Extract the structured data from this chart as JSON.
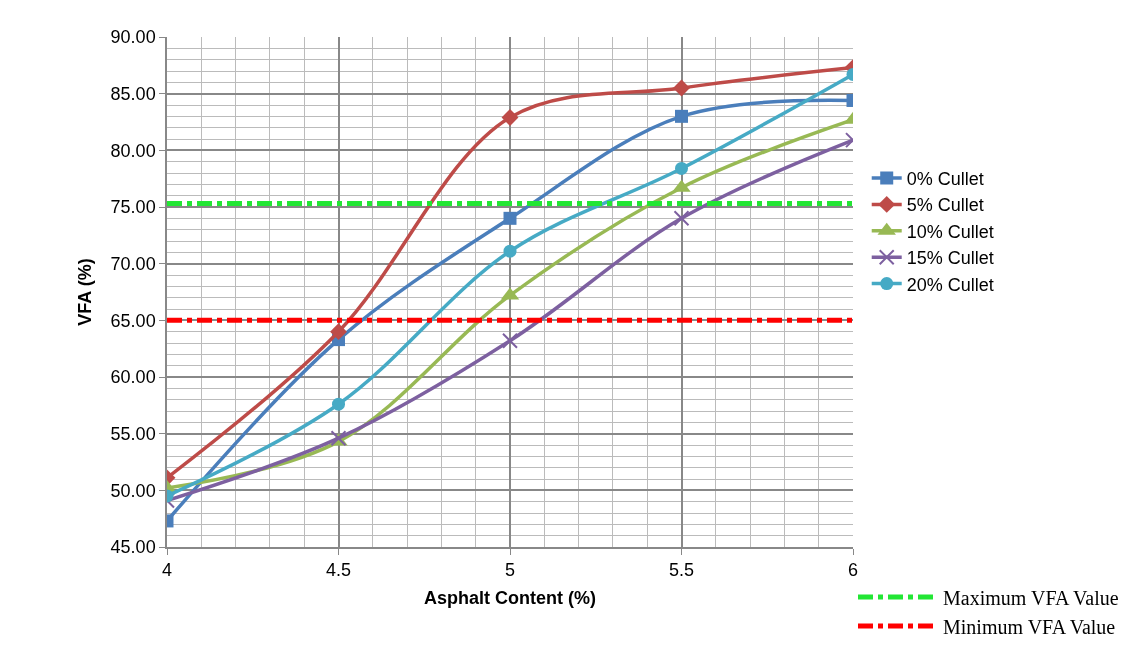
{
  "chart_data": {
    "type": "line",
    "xlabel": "Asphalt Content (%)",
    "ylabel": "VFA (%)",
    "x": [
      4,
      4.5,
      5,
      5.5,
      6
    ],
    "series": [
      {
        "name": "0% Cullet",
        "color": "#4a7ebb",
        "marker": "square",
        "values": [
          47.3,
          63.3,
          74.0,
          83.0,
          84.4
        ]
      },
      {
        "name": "5% Cullet",
        "color": "#be4b48",
        "marker": "diamond",
        "values": [
          51.1,
          64.0,
          82.9,
          85.5,
          87.3
        ]
      },
      {
        "name": "10% Cullet",
        "color": "#98b954",
        "marker": "triangle",
        "values": [
          50.2,
          54.3,
          67.2,
          76.7,
          82.7
        ]
      },
      {
        "name": "15% Cullet",
        "color": "#7d60a0",
        "marker": "cross",
        "values": [
          49.1,
          54.6,
          63.2,
          74.0,
          80.9
        ]
      },
      {
        "name": "20% Cullet",
        "color": "#46aac5",
        "marker": "circle",
        "values": [
          49.5,
          57.6,
          71.1,
          78.4,
          86.7
        ]
      }
    ],
    "xlim": [
      4,
      6
    ],
    "xticks": [
      4,
      4.5,
      5,
      5.5,
      6
    ],
    "ylim": [
      45,
      90
    ],
    "yticks": [
      {
        "value": 45,
        "label": "45.00"
      },
      {
        "value": 50,
        "label": "50.00"
      },
      {
        "value": 55,
        "label": "55.00"
      },
      {
        "value": 60,
        "label": "60.00"
      },
      {
        "value": 65,
        "label": "65.00"
      },
      {
        "value": 70,
        "label": "70.00"
      },
      {
        "value": 75,
        "label": "75.00"
      },
      {
        "value": 80,
        "label": "80.00"
      },
      {
        "value": 85,
        "label": "85.00"
      },
      {
        "value": 90,
        "label": "90.00"
      }
    ],
    "ref_lines": [
      {
        "axis": "y",
        "value": 75.3,
        "label": "Maximum VFA Value",
        "color": "#22e634",
        "line_style": "dashdot"
      },
      {
        "axis": "y",
        "value": 65,
        "label": "Minimum VFA Value",
        "color": "#ff0000",
        "line_style": "dashdot"
      }
    ],
    "grid": true,
    "legend": "right"
  }
}
